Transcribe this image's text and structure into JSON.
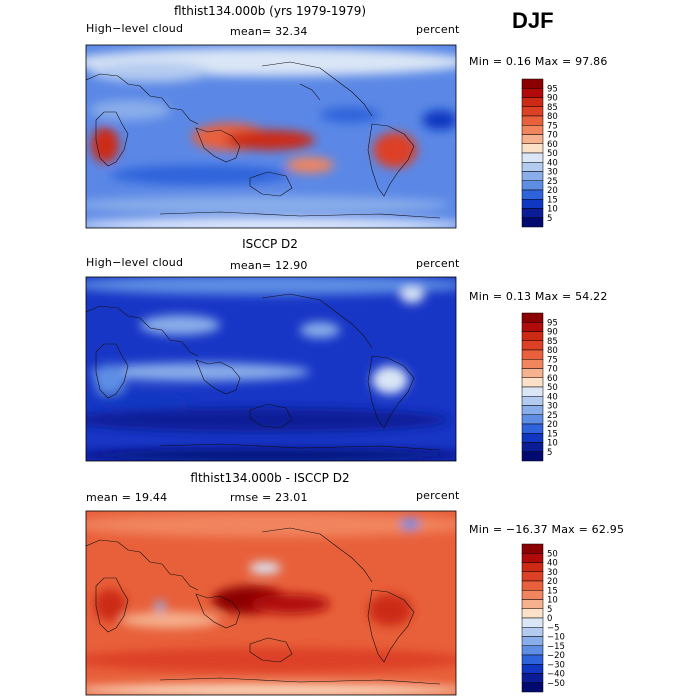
{
  "season": "DJF",
  "panels": [
    {
      "title": "flthist134.000b (yrs 1979-1979)",
      "left_label": "High−level cloud",
      "mean_text": "mean=  32.34",
      "units": "percent",
      "min_max": "Min =   0.16 Max =  97.86",
      "colorbar_levels": [
        "95",
        "90",
        "85",
        "80",
        "75",
        "70",
        "60",
        "50",
        "40",
        "30",
        "25",
        "20",
        "15",
        "10",
        "5"
      ],
      "colorbar_colors": [
        "#8b0000",
        "#b00a0a",
        "#cc2a14",
        "#dd4125",
        "#e9603c",
        "#f1855e",
        "#f6b18f",
        "#fbe1c8",
        "#dae6f6",
        "#b4cbf0",
        "#8aaeea",
        "#5d8ee4",
        "#2f63db",
        "#1037c2",
        "#0a1d96",
        "#020a70"
      ],
      "map_base": "#5b88e6"
    },
    {
      "title": "ISCCP D2",
      "left_label": "High−level cloud",
      "mean_text": "mean=  12.90",
      "units": "percent",
      "min_max": "Min =   0.13 Max =  54.22",
      "colorbar_levels": [
        "95",
        "90",
        "85",
        "80",
        "75",
        "70",
        "60",
        "50",
        "40",
        "30",
        "25",
        "20",
        "15",
        "10",
        "5"
      ],
      "colorbar_colors": [
        "#8b0000",
        "#b00a0a",
        "#cc2a14",
        "#dd4125",
        "#e9603c",
        "#f1855e",
        "#f6b18f",
        "#fbe1c8",
        "#dae6f6",
        "#b4cbf0",
        "#8aaeea",
        "#5d8ee4",
        "#2f63db",
        "#1037c2",
        "#0a1d96",
        "#020a70"
      ],
      "map_base": "#1836c6"
    },
    {
      "title": "flthist134.000b - ISCCP D2",
      "left_label": "mean =   19.44",
      "mean_text": "rmse =   23.01",
      "units": "percent",
      "min_max": "Min = −16.37 Max =  62.95",
      "colorbar_levels": [
        "50",
        "40",
        "30",
        "20",
        "15",
        "10",
        "5",
        "0",
        "−5",
        "−10",
        "−15",
        "−20",
        "−30",
        "−40",
        "−50"
      ],
      "colorbar_colors": [
        "#8b0000",
        "#b00a0a",
        "#cc2a14",
        "#dd4125",
        "#e9603c",
        "#f1855e",
        "#f6b18f",
        "#fbe1c8",
        "#dae6f6",
        "#b4cbf0",
        "#8aaeea",
        "#5d8ee4",
        "#2f63db",
        "#1037c2",
        "#0a1d96",
        "#020a70"
      ],
      "map_base": "#e8603a"
    }
  ],
  "chart_data": [
    {
      "type": "heatmap",
      "title": "flthist134.000b (yrs 1979-1979)",
      "variable": "High-level cloud",
      "units": "percent",
      "mean": 32.34,
      "min": 0.16,
      "max": 97.86,
      "contour_levels": [
        5,
        10,
        15,
        20,
        25,
        30,
        40,
        50,
        60,
        70,
        75,
        80,
        85,
        90,
        95
      ]
    },
    {
      "type": "heatmap",
      "title": "ISCCP D2",
      "variable": "High-level cloud",
      "units": "percent",
      "mean": 12.9,
      "min": 0.13,
      "max": 54.22,
      "contour_levels": [
        5,
        10,
        15,
        20,
        25,
        30,
        40,
        50,
        60,
        70,
        75,
        80,
        85,
        90,
        95
      ]
    },
    {
      "type": "heatmap",
      "title": "flthist134.000b - ISCCP D2",
      "units": "percent",
      "mean": 19.44,
      "rmse": 23.01,
      "min": -16.37,
      "max": 62.95,
      "contour_levels": [
        -50,
        -40,
        -30,
        -20,
        -15,
        -10,
        -5,
        0,
        5,
        10,
        15,
        20,
        30,
        40,
        50
      ]
    }
  ]
}
